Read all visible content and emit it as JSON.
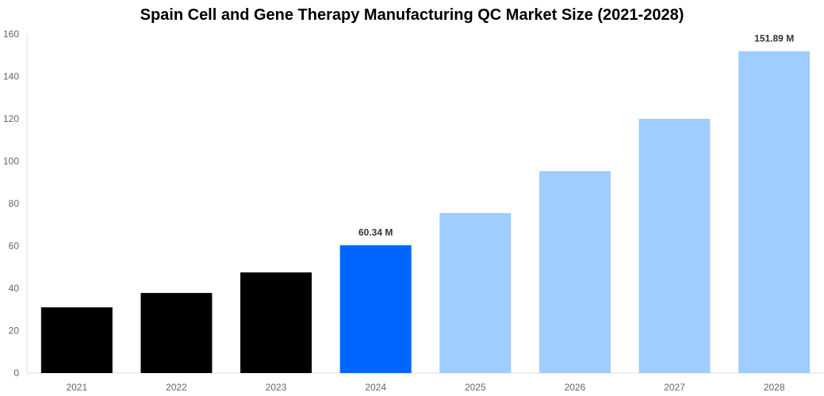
{
  "chart_data": {
    "type": "bar",
    "title": "Spain Cell and Gene Therapy Manufacturing QC Market Size (2021-2028)",
    "xlabel": "",
    "ylabel": "",
    "categories": [
      "2021",
      "2022",
      "2023",
      "2024",
      "2025",
      "2026",
      "2027",
      "2028"
    ],
    "values": [
      31.0,
      37.8,
      47.5,
      60.34,
      75.5,
      95.3,
      120.0,
      151.89
    ],
    "data_labels": {
      "3": "60.34 M",
      "7": "151.89 M"
    },
    "colors": [
      "#000000",
      "#000000",
      "#000000",
      "#0066ff",
      "#a0cdff",
      "#a0cdff",
      "#a0cdff",
      "#a0cdff"
    ],
    "ylim": [
      0,
      160
    ],
    "yticks": [
      0,
      20,
      40,
      60,
      80,
      100,
      120,
      140,
      160
    ],
    "grid": false,
    "legend": "none"
  }
}
